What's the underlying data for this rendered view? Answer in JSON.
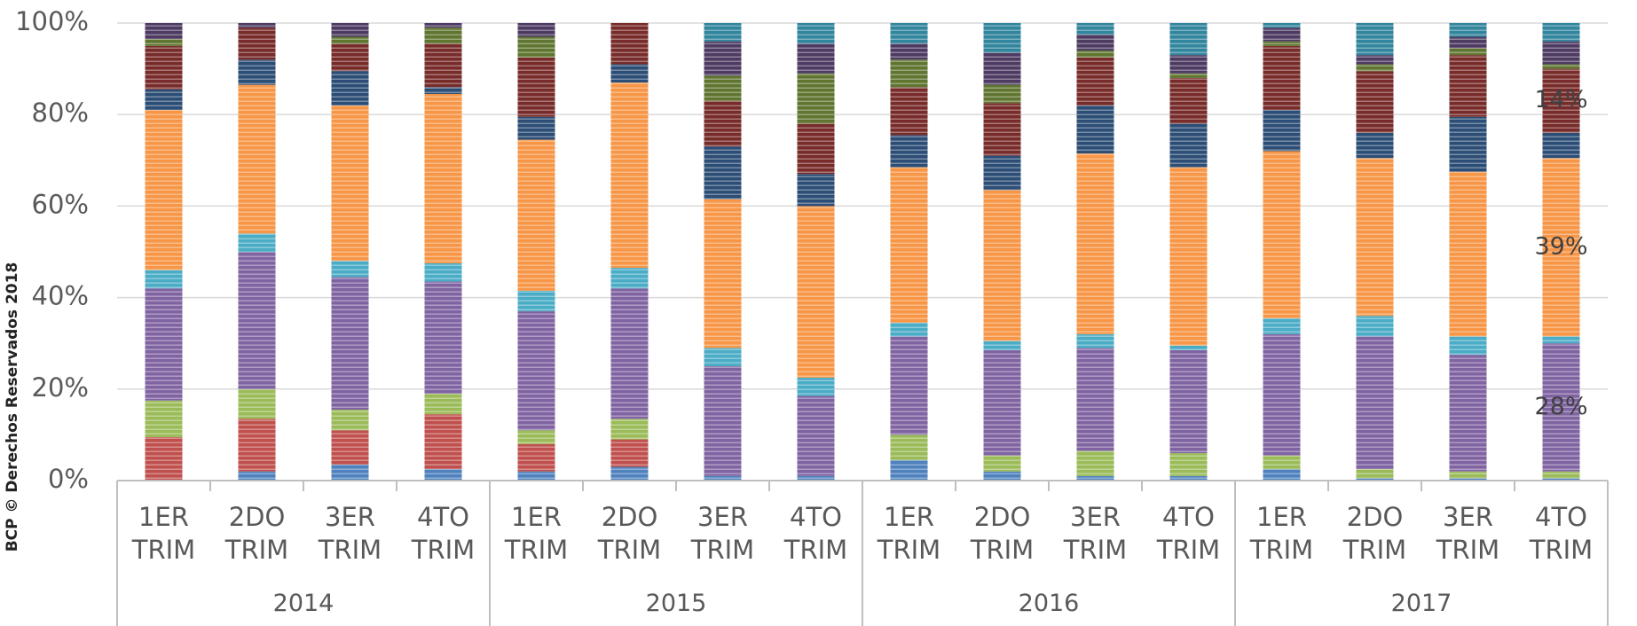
{
  "chart_data": {
    "type": "stacked_bar_100",
    "watermark": "BCP © Derechos Reservados 2018",
    "categories": [
      "1ER TRIM",
      "2DO TRIM",
      "3ER TRIM",
      "4TO TRIM",
      "1ER TRIM",
      "2DO TRIM",
      "3ER TRIM",
      "4TO TRIM",
      "1ER TRIM",
      "2DO TRIM",
      "3ER TRIM",
      "4TO TRIM",
      "1ER TRIM",
      "2DO TRIM",
      "3ER TRIM",
      "4TO TRIM"
    ],
    "groups": [
      "2014",
      "2015",
      "2016",
      "2017"
    ],
    "ylim": [
      0,
      100
    ],
    "yticks": [
      {
        "value": 0,
        "label": "0%"
      },
      {
        "value": 20,
        "label": "20%"
      },
      {
        "value": 40,
        "label": "40%"
      },
      {
        "value": 60,
        "label": "60%"
      },
      {
        "value": 80,
        "label": "80%"
      },
      {
        "value": 100,
        "label": "100%"
      }
    ],
    "grid": true,
    "series": [
      {
        "color": "#4f81bd",
        "values": [
          0,
          2,
          3.5,
          2.5,
          2,
          3,
          1,
          1,
          4.5,
          2,
          1,
          1,
          2.5,
          0.5,
          0.5,
          0.5
        ]
      },
      {
        "color": "#c0504d",
        "values": [
          9.5,
          11.5,
          7.5,
          12,
          6,
          6,
          0,
          0,
          0,
          0,
          0,
          0,
          0,
          0,
          0,
          0
        ]
      },
      {
        "color": "#9bbb59",
        "values": [
          8,
          6.5,
          4.5,
          4.5,
          3,
          4.5,
          0,
          0,
          5.5,
          3.5,
          5.5,
          5,
          3,
          2,
          1.5,
          1.5
        ]
      },
      {
        "color": "#8064a2",
        "values": [
          24.5,
          30,
          29,
          24.5,
          26,
          28.5,
          24,
          17.5,
          21.5,
          23,
          22.5,
          22.5,
          26.5,
          29,
          25.5,
          28
        ],
        "value_labels": [
          null,
          null,
          null,
          null,
          null,
          null,
          null,
          null,
          null,
          null,
          null,
          null,
          null,
          null,
          null,
          "28%"
        ]
      },
      {
        "color": "#4bacc6",
        "values": [
          4,
          4,
          3.5,
          4,
          4.5,
          4.5,
          4,
          4,
          3,
          2,
          3,
          1,
          3.5,
          4.5,
          4,
          1.5
        ]
      },
      {
        "color": "#f79646",
        "values": [
          35,
          32.5,
          34,
          37,
          33,
          40.5,
          32.5,
          37.5,
          34,
          33,
          39.5,
          39,
          36.5,
          34.5,
          36,
          39
        ],
        "value_labels": [
          null,
          null,
          null,
          null,
          null,
          null,
          null,
          null,
          null,
          null,
          null,
          null,
          null,
          null,
          null,
          "39%"
        ]
      },
      {
        "color": "#2c4d75",
        "values": [
          4.5,
          5.5,
          7.5,
          1.5,
          5,
          4,
          11.5,
          7,
          7,
          7.5,
          10.5,
          9.5,
          9,
          5.5,
          12,
          5.5
        ]
      },
      {
        "color": "#772c2a",
        "values": [
          9.5,
          7,
          6,
          9.5,
          13,
          9,
          10,
          11,
          10.5,
          11.5,
          10.5,
          10,
          14,
          13.5,
          13.5,
          14
        ],
        "value_labels": [
          null,
          null,
          null,
          null,
          null,
          null,
          null,
          null,
          null,
          null,
          null,
          null,
          null,
          null,
          null,
          "14%"
        ]
      },
      {
        "color": "#5f7530",
        "values": [
          1.5,
          0,
          1.5,
          3.5,
          4.5,
          0,
          5.5,
          11,
          6,
          4,
          1.5,
          1,
          1,
          1.5,
          1.5,
          1
        ]
      },
      {
        "color": "#4d3b62",
        "values": [
          3.5,
          1,
          3,
          1,
          3,
          0,
          7.5,
          6.5,
          3.5,
          7,
          3.5,
          4,
          3,
          2,
          2.5,
          5
        ]
      },
      {
        "color": "#31859c",
        "values": [
          0,
          0,
          0,
          0,
          0,
          0,
          4,
          4.5,
          4.5,
          6.5,
          2.5,
          7,
          1,
          7,
          3,
          4
        ]
      }
    ]
  }
}
